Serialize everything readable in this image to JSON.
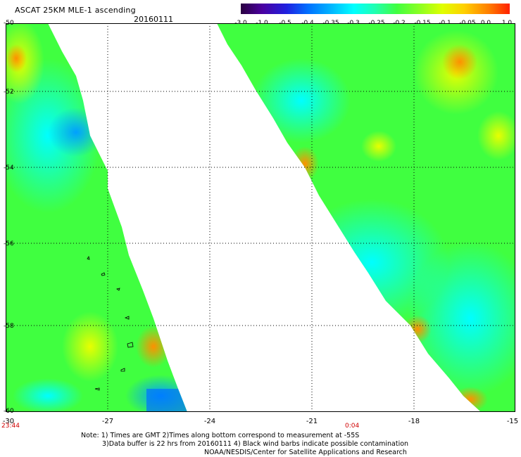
{
  "header": {
    "title": "ASCAT 25KM MLE-1 ascending",
    "date": "20160111"
  },
  "colorbar": {
    "labels": [
      "-3.0",
      "-1.0",
      "-0.5",
      "-0.4",
      "-0.35",
      "-0.3",
      "-0.25",
      "-0.2",
      "-0.15",
      "-0.1",
      "-0.05",
      "0.0",
      "1.0"
    ],
    "colors": [
      "#2a0040",
      "#4a00a0",
      "#2020e0",
      "#0070ff",
      "#00b0ff",
      "#00ffff",
      "#20ffb0",
      "#40ff40",
      "#90ff20",
      "#e0ff00",
      "#ffd000",
      "#ff8000",
      "#ff2000"
    ]
  },
  "map": {
    "y_axis": {
      "labels": [
        "-50",
        "-52",
        "-54",
        "-56",
        "-58",
        "-60"
      ]
    },
    "x_axis": {
      "labels": [
        "-30",
        "-27",
        "-24",
        "-21",
        "-18",
        "-15"
      ]
    },
    "times": [
      "23:44",
      "0:04"
    ]
  },
  "notes": [
    "Note: 1) Times are GMT 2)Times along bottom correspond to measurement at -55S",
    "3)Data buffer is 22 hrs from 20160111 4) Black wind barbs indicate possible contamination",
    "NOAA/NESDIS/Center for Satellite Applications and Research"
  ]
}
